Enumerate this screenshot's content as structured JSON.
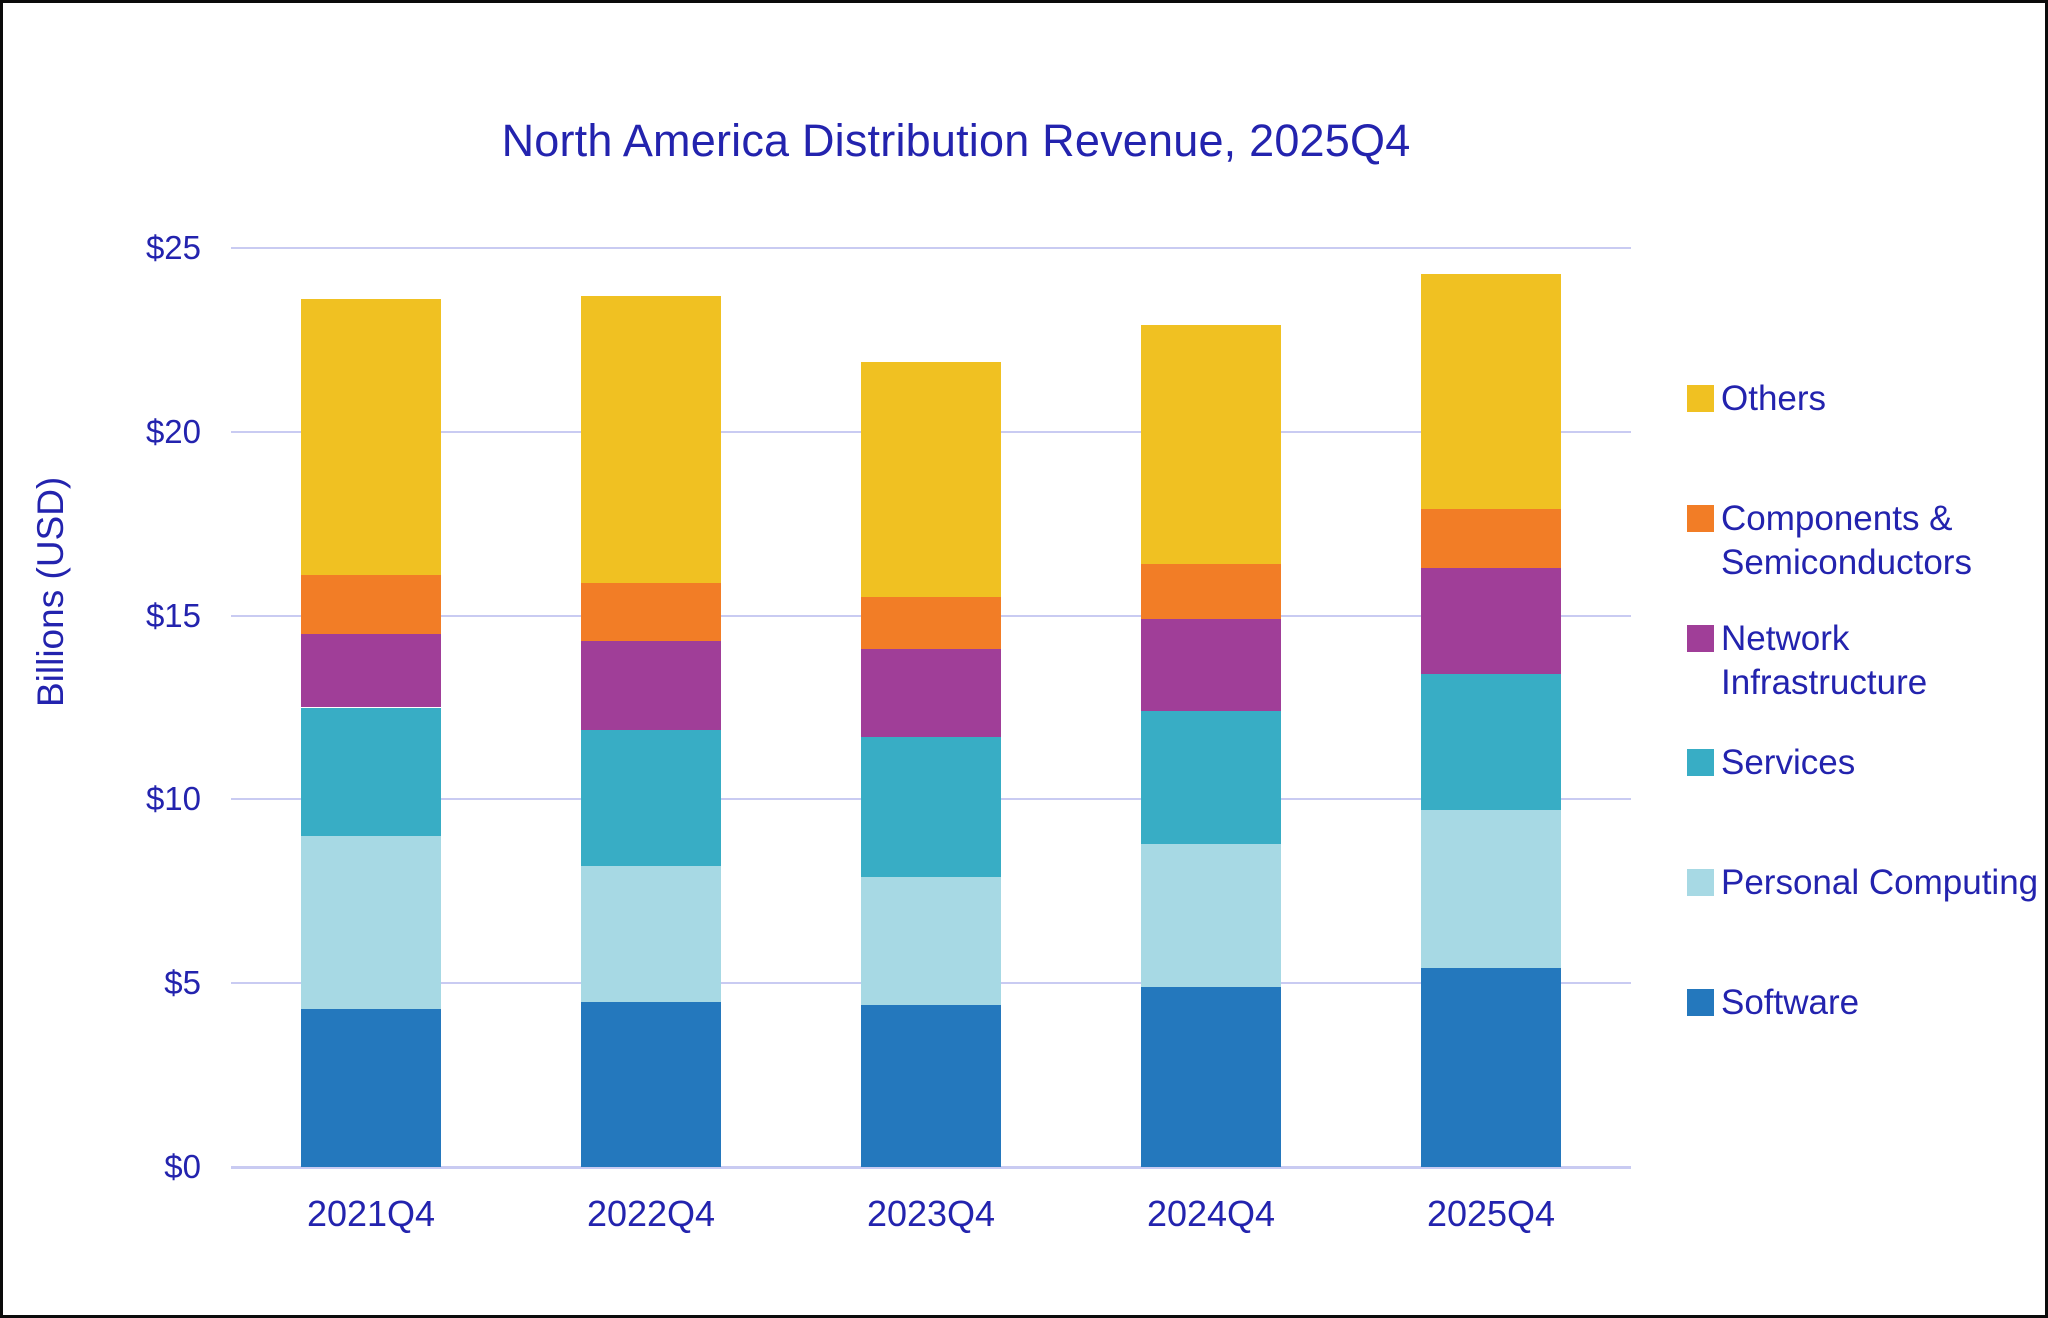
{
  "title": "North America Distribution Revenue, 2025Q4",
  "colors": {
    "text_blue": "#2323AE",
    "gridline": "#C9CBF2",
    "background": "#FFFFFF",
    "border": "#0B0B0B"
  },
  "chart_data": {
    "type": "bar",
    "stacked": true,
    "title": "North America Distribution Revenue, 2025Q4",
    "xlabel": "",
    "ylabel": "Billions (USD)",
    "ylim": [
      0,
      25
    ],
    "grid": true,
    "legend_position": "right",
    "categories": [
      "2021Q4",
      "2022Q4",
      "2023Q4",
      "2024Q4",
      "2025Q4"
    ],
    "series": [
      {
        "name": "Software",
        "color": "#2478BD",
        "values": [
          4.3,
          4.5,
          4.4,
          4.9,
          5.4
        ]
      },
      {
        "name": "Personal Computing",
        "color": "#A7D9E4",
        "values": [
          4.7,
          3.7,
          3.5,
          3.9,
          4.3
        ]
      },
      {
        "name": "Services",
        "color": "#38ADC5",
        "values": [
          3.5,
          3.7,
          3.8,
          3.6,
          3.7
        ]
      },
      {
        "name": "Network Infrastructure",
        "color": "#A03E98",
        "values": [
          2.0,
          2.4,
          2.4,
          2.5,
          2.9
        ]
      },
      {
        "name": "Components & Semiconductors",
        "color": "#F27D26",
        "values": [
          1.6,
          1.6,
          1.4,
          1.5,
          1.6
        ]
      },
      {
        "name": "Others",
        "color": "#F0C122",
        "values": [
          7.5,
          7.8,
          6.4,
          6.5,
          6.4
        ]
      }
    ],
    "totals": [
      23.6,
      23.7,
      21.9,
      22.9,
      24.3
    ],
    "y_ticks": [
      {
        "value": 0,
        "label": "$0"
      },
      {
        "value": 5,
        "label": "$5"
      },
      {
        "value": 10,
        "label": "$10"
      },
      {
        "value": 15,
        "label": "$15"
      },
      {
        "value": 20,
        "label": "$20"
      },
      {
        "value": 25,
        "label": "$25"
      }
    ],
    "legend_order": [
      "Others",
      "Components & Semiconductors",
      "Network Infrastructure",
      "Services",
      "Personal Computing",
      "Software"
    ]
  }
}
